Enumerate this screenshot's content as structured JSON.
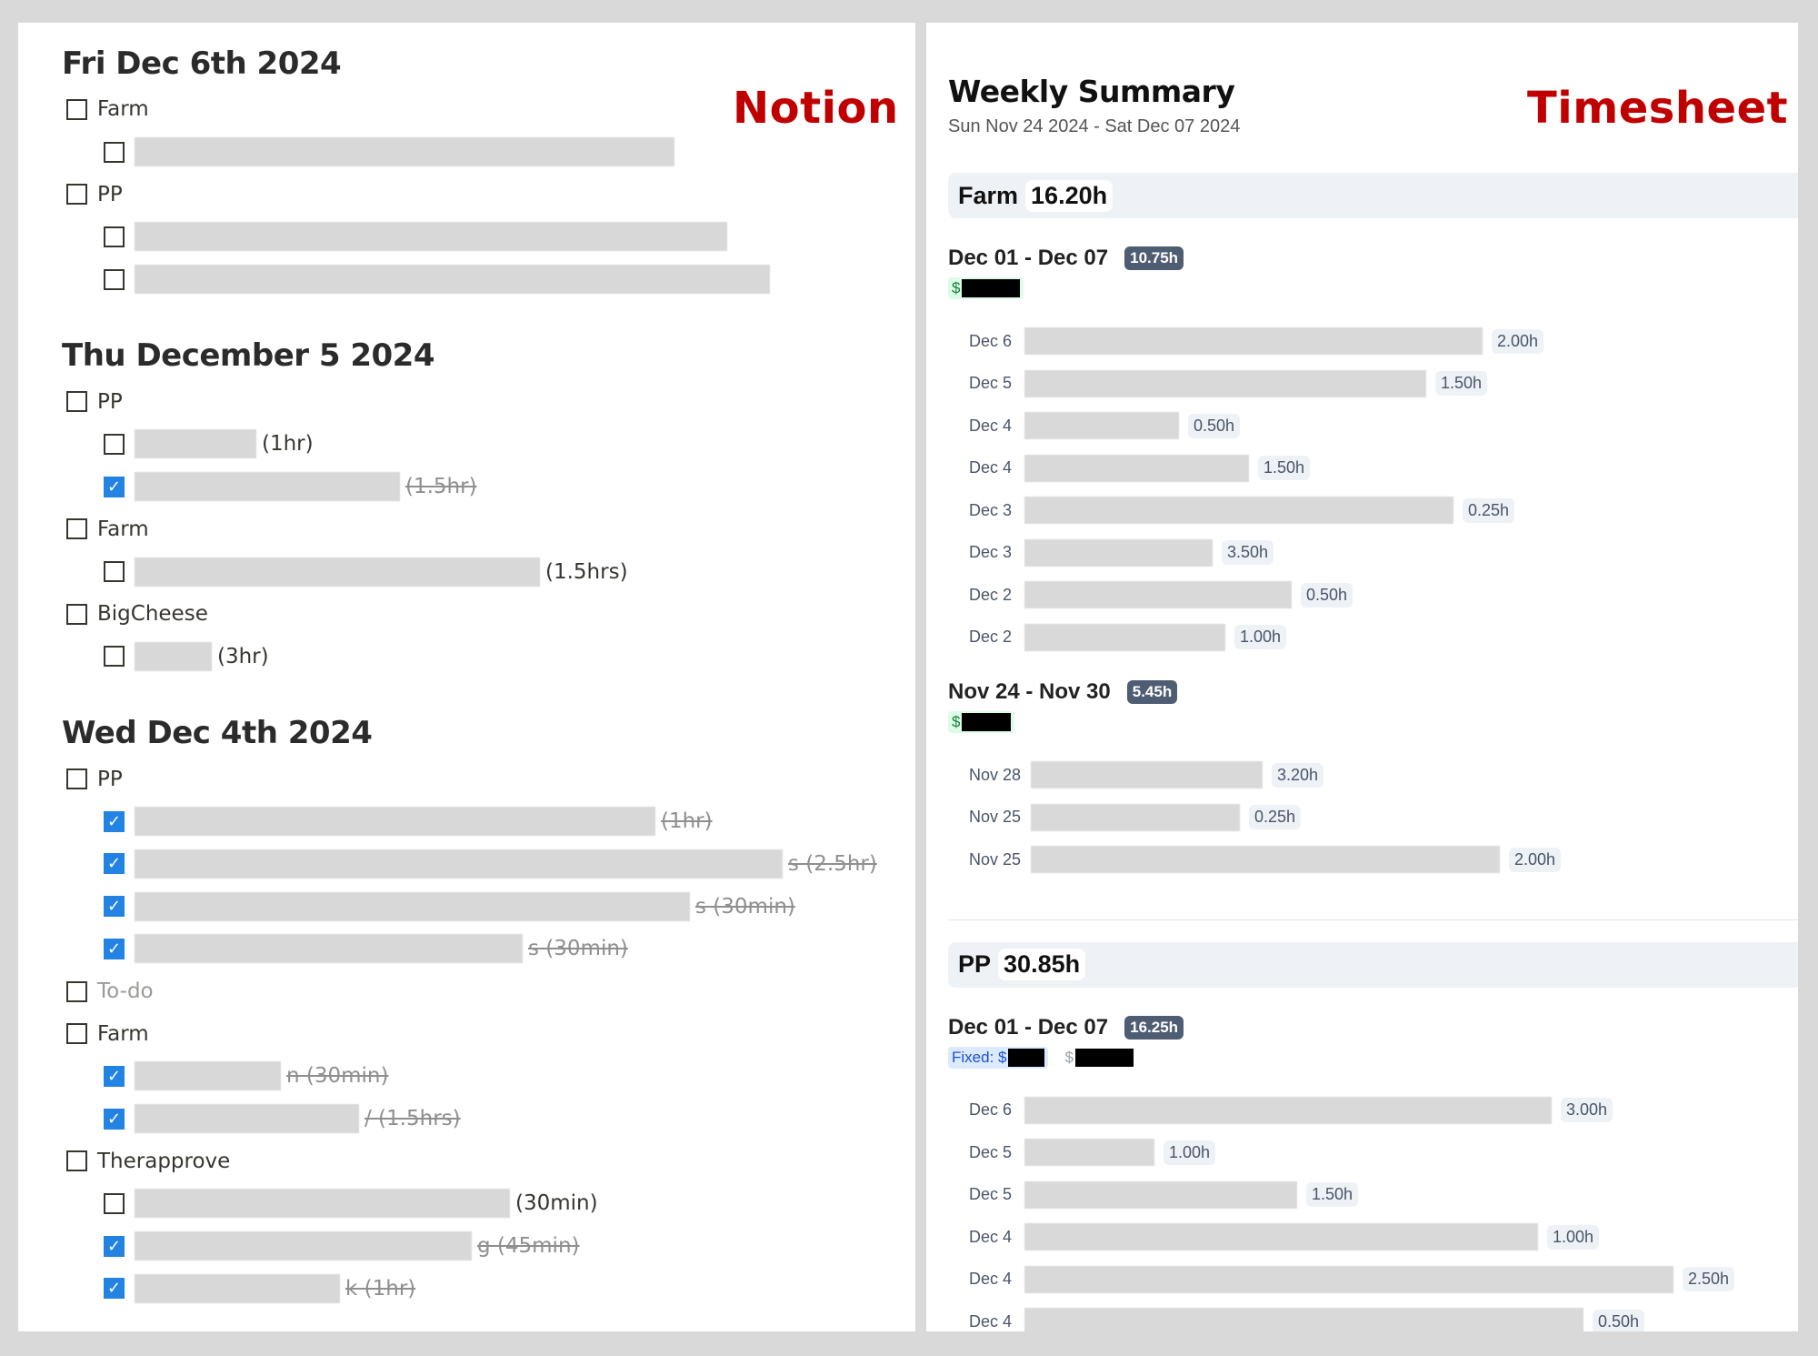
{
  "notion": {
    "label": "Notion",
    "days": [
      {
        "title": "Fri Dec 6th 2024",
        "groups": [
          {
            "name": "Farm",
            "checked": false,
            "tasks": [
              {
                "checked": false
              }
            ]
          },
          {
            "name": "PP",
            "checked": false,
            "tasks": [
              {
                "checked": false
              },
              {
                "checked": false
              }
            ]
          }
        ]
      },
      {
        "title": "Thu December 5 2024",
        "groups": [
          {
            "name": "PP",
            "checked": false,
            "tasks": [
              {
                "checked": false,
                "suffix": "(1hr)"
              },
              {
                "checked": true,
                "suffix": "(1.5hr)"
              }
            ]
          },
          {
            "name": "Farm",
            "checked": false,
            "tasks": [
              {
                "checked": false,
                "suffix": "(1.5hrs)"
              }
            ]
          },
          {
            "name": "BigCheese",
            "checked": false,
            "tasks": [
              {
                "checked": false,
                "suffix": "(3hr)"
              }
            ]
          }
        ]
      },
      {
        "title": "Wed Dec 4th 2024",
        "groups": [
          {
            "name": "PP",
            "checked": false,
            "tasks": [
              {
                "checked": true,
                "suffix": "(1hr)"
              },
              {
                "checked": true,
                "suffix": "s (2.5hr)"
              },
              {
                "checked": true,
                "suffix": "s (30min)"
              },
              {
                "checked": true,
                "suffix": "s (30min)"
              }
            ]
          },
          {
            "name": "To-do",
            "checked": false,
            "placeholder": true,
            "tasks": []
          },
          {
            "name": "Farm",
            "checked": false,
            "tasks": [
              {
                "checked": true,
                "suffix": "n (30min)"
              },
              {
                "checked": true,
                "suffix": "/ (1.5hrs)"
              }
            ]
          },
          {
            "name": "Therapprove",
            "checked": false,
            "tasks": [
              {
                "checked": false,
                "suffix": "(30min)"
              },
              {
                "checked": true,
                "suffix": "g (45min)"
              },
              {
                "checked": true,
                "suffix": "k (1hr)"
              }
            ]
          }
        ]
      }
    ]
  },
  "timesheet": {
    "label": "Timesheet",
    "title": "Weekly Summary",
    "range": "Sun Nov 24 2024 - Sat Dec 07 2024",
    "projects": [
      {
        "name": "Farm",
        "total": "16.20h",
        "weeks": [
          {
            "range": "Dec 01 - Dec 07",
            "total": "10.75h",
            "rate_label": "$",
            "entries": [
              {
                "date": "Dec 6",
                "hours": "2.00h"
              },
              {
                "date": "Dec 5",
                "hours": "1.50h"
              },
              {
                "date": "Dec 4",
                "hours": "0.50h"
              },
              {
                "date": "Dec 4",
                "hours": "1.50h"
              },
              {
                "date": "Dec 3",
                "hours": "0.25h"
              },
              {
                "date": "Dec 3",
                "hours": "3.50h"
              },
              {
                "date": "Dec 2",
                "hours": "0.50h"
              },
              {
                "date": "Dec 2",
                "hours": "1.00h"
              }
            ]
          },
          {
            "range": "Nov 24 - Nov 30",
            "total": "5.45h",
            "rate_label": "$",
            "entries": [
              {
                "date": "Nov 28",
                "hours": "3.20h"
              },
              {
                "date": "Nov 25",
                "hours": "0.25h"
              },
              {
                "date": "Nov 25",
                "hours": "2.00h"
              }
            ]
          }
        ]
      },
      {
        "name": "PP",
        "total": "30.85h",
        "weeks": [
          {
            "range": "Dec 01 - Dec 07",
            "total": "16.25h",
            "fixed_label": "Fixed: $",
            "rate_label": "$",
            "entries": [
              {
                "date": "Dec 6",
                "hours": "3.00h"
              },
              {
                "date": "Dec 5",
                "hours": "1.00h"
              },
              {
                "date": "Dec 5",
                "hours": "1.50h"
              },
              {
                "date": "Dec 4",
                "hours": "1.00h"
              },
              {
                "date": "Dec 4",
                "hours": "2.50h"
              },
              {
                "date": "Dec 4",
                "hours": "0.50h"
              }
            ]
          }
        ]
      }
    ]
  }
}
